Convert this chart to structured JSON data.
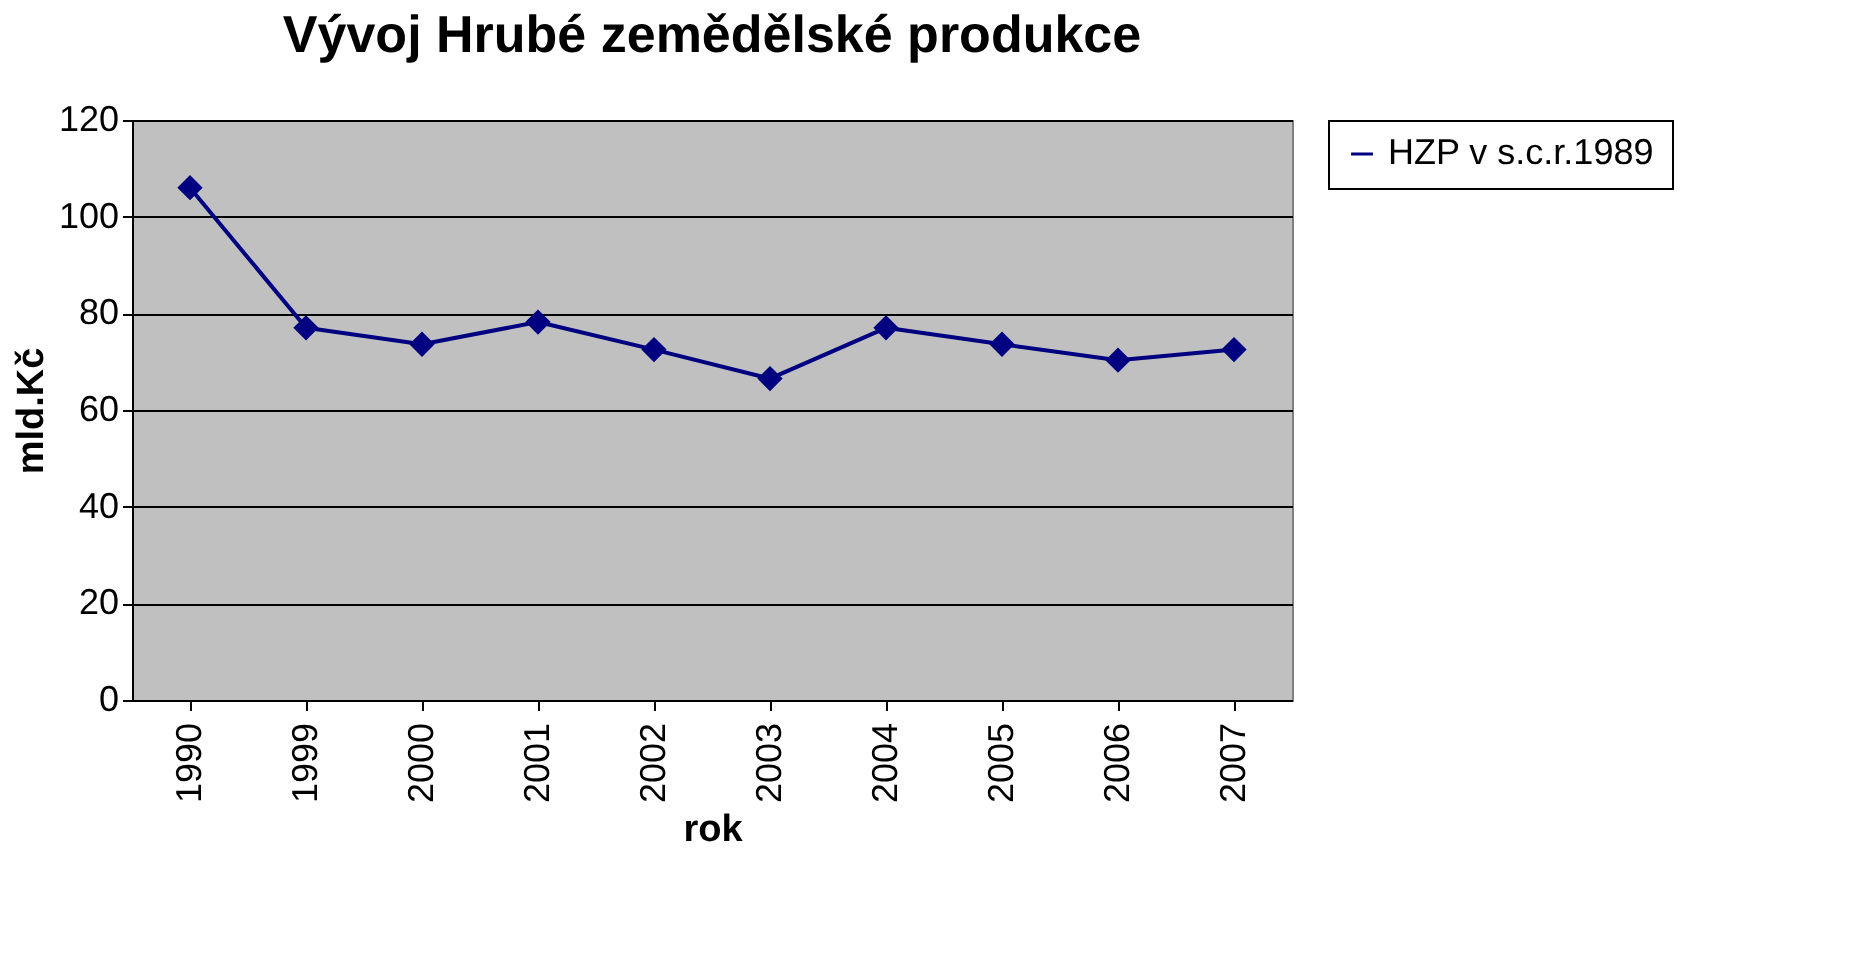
{
  "chart_data": {
    "type": "line",
    "title": "Vývoj Hrubé zemědělské produkce",
    "xlabel": "rok",
    "ylabel": "mld.Kč",
    "categories": [
      "1990",
      "1999",
      "2000",
      "2001",
      "2002",
      "2003",
      "2004",
      "2005",
      "2006",
      "2007"
    ],
    "series": [
      {
        "name": "HZP v s.c.r.1989",
        "color": "#000080",
        "values": [
          106,
          77,
          73.6,
          78.2,
          72.5,
          66.5,
          77,
          73.6,
          70.3,
          72.5
        ]
      }
    ],
    "ylim": [
      0,
      120
    ],
    "yticks": [
      0,
      20,
      40,
      60,
      80,
      100,
      120
    ],
    "grid": "y",
    "legend": "right",
    "marker": "diamond",
    "line_style": "solid"
  }
}
